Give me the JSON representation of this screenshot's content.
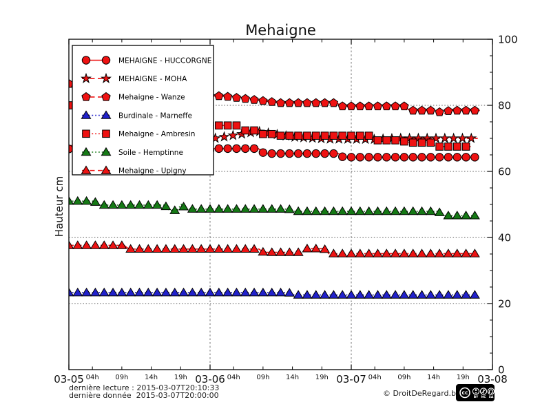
{
  "chart_data": {
    "type": "line",
    "title": "Mehaigne",
    "ylabel": "Hauteur cm",
    "x_axis": {
      "unit": "hours since 03-05 00:00",
      "range_hours": [
        0,
        72
      ],
      "day_ticks": [
        {
          "hour": 0,
          "label": "03-05"
        },
        {
          "hour": 24,
          "label": "03-06"
        },
        {
          "hour": 48,
          "label": "03-07"
        },
        {
          "hour": 72,
          "label": "03-08"
        }
      ],
      "hour_ticks": [
        {
          "hour": 4,
          "label": "04h"
        },
        {
          "hour": 9,
          "label": "09h"
        },
        {
          "hour": 14,
          "label": "14h"
        },
        {
          "hour": 19,
          "label": "19h"
        },
        {
          "hour": 28,
          "label": "04h"
        },
        {
          "hour": 33,
          "label": "09h"
        },
        {
          "hour": 38,
          "label": "14h"
        },
        {
          "hour": 43,
          "label": "19h"
        },
        {
          "hour": 52,
          "label": "04h"
        },
        {
          "hour": 57,
          "label": "09h"
        },
        {
          "hour": 62,
          "label": "14h"
        },
        {
          "hour": 67,
          "label": "19h"
        }
      ],
      "vertical_gridlines_hours": [
        24,
        48
      ]
    },
    "y_axis": {
      "range": [
        0,
        100
      ],
      "major_ticks": [
        0,
        20,
        40,
        60,
        80,
        100
      ],
      "minor_step": 5,
      "gridlines": [
        20,
        40,
        60,
        80
      ],
      "labels_side": "right"
    },
    "grid": true,
    "legend_position": "upper-left",
    "marker_interval_hours": 1.5,
    "series": [
      {
        "name": "MEHAIGNE - HUCCORGNE",
        "color": "#ee1212",
        "line_style": "solid",
        "marker": "circle",
        "points": [
          [
            0,
            66.8
          ],
          [
            1,
            68.9
          ],
          [
            6,
            68.4
          ],
          [
            18,
            65.6
          ],
          [
            23.2,
            64.6
          ],
          [
            24.2,
            66.9
          ],
          [
            32.2,
            66.9
          ],
          [
            33.2,
            65.4
          ],
          [
            45.8,
            65.4
          ],
          [
            46.6,
            64.3
          ],
          [
            69.5,
            64.3
          ]
        ]
      },
      {
        "name": "MEHAIGNE - MOHA",
        "color": "#ee1212",
        "line_style": "dashed",
        "marker": "star",
        "points": [
          [
            23.4,
            69.6
          ],
          [
            32.2,
            72.1
          ],
          [
            38,
            70.4
          ],
          [
            44,
            69.8
          ],
          [
            52,
            69.7
          ],
          [
            56,
            70.0
          ],
          [
            69.5,
            70.0
          ]
        ]
      },
      {
        "name": "Mehaigne - Wanze",
        "color": "#ee1212",
        "line_style": "dashed",
        "marker": "pentagon",
        "points": [
          [
            0,
            86.5
          ],
          [
            10,
            84.6
          ],
          [
            24,
            82.8
          ],
          [
            26,
            82.8
          ],
          [
            36,
            80.7
          ],
          [
            45.5,
            80.7
          ],
          [
            46.5,
            79.7
          ],
          [
            57,
            79.7
          ],
          [
            58,
            78.4
          ],
          [
            62.6,
            78.4
          ],
          [
            63.6,
            77.2
          ],
          [
            64.6,
            78.4
          ],
          [
            70.3,
            78.4
          ]
        ]
      },
      {
        "name": "Burdinale - Marneffe",
        "color": "#2121cc",
        "line_style": "dotted",
        "marker": "triangle",
        "points": [
          [
            0,
            23.3
          ],
          [
            37.4,
            23.3
          ],
          [
            38.3,
            22.6
          ],
          [
            69.5,
            22.6
          ]
        ]
      },
      {
        "name": "Mehaigne - Ambresin",
        "color": "#ee1212",
        "line_style": "dotted",
        "marker": "square",
        "points": [
          [
            0,
            80.0
          ],
          [
            10,
            76.8
          ],
          [
            23.8,
            73.9
          ],
          [
            28.6,
            73.9
          ],
          [
            29.4,
            72.4
          ],
          [
            32.2,
            72.4
          ],
          [
            33.0,
            71.3
          ],
          [
            35.2,
            71.3
          ],
          [
            36.0,
            70.8
          ],
          [
            51.6,
            70.8
          ],
          [
            52.4,
            69.4
          ],
          [
            56.6,
            69.4
          ],
          [
            57.4,
            68.7
          ],
          [
            61.6,
            68.7
          ],
          [
            62.4,
            67.5
          ],
          [
            68.3,
            67.5
          ]
        ]
      },
      {
        "name": "Soile - Hemptinne",
        "color": "#157915",
        "line_style": "dotted",
        "marker": "triangle",
        "points": [
          [
            0,
            51.0
          ],
          [
            4.3,
            51.0
          ],
          [
            5.1,
            49.8
          ],
          [
            16.3,
            49.8
          ],
          [
            17.1,
            48.2
          ],
          [
            18.4,
            48.2
          ],
          [
            19.1,
            50.0
          ],
          [
            19.9,
            48.6
          ],
          [
            37.4,
            48.6
          ],
          [
            38.2,
            47.9
          ],
          [
            62.8,
            47.9
          ],
          [
            63.6,
            46.6
          ],
          [
            69.5,
            46.6
          ]
        ]
      },
      {
        "name": "Mehaigne - Upigny",
        "color": "#ee1212",
        "line_style": "dashed",
        "marker": "triangle",
        "points": [
          [
            0,
            37.6
          ],
          [
            9.4,
            37.6
          ],
          [
            10.2,
            36.5
          ],
          [
            32.3,
            36.5
          ],
          [
            33.1,
            35.5
          ],
          [
            39.5,
            35.5
          ],
          [
            40.3,
            36.6
          ],
          [
            43.4,
            36.6
          ],
          [
            44.2,
            35.1
          ],
          [
            69.5,
            35.1
          ]
        ]
      }
    ]
  },
  "footer": {
    "last_reading": "dernière lecture : 2015-03-07T20:10:33",
    "last_data": "dernière donnée  2015-03-07T20:00:00",
    "copyright": "© DroitDeRegard.be",
    "cc": {
      "label": "cc",
      "terms": [
        "BY",
        "NC",
        "SA"
      ]
    }
  }
}
